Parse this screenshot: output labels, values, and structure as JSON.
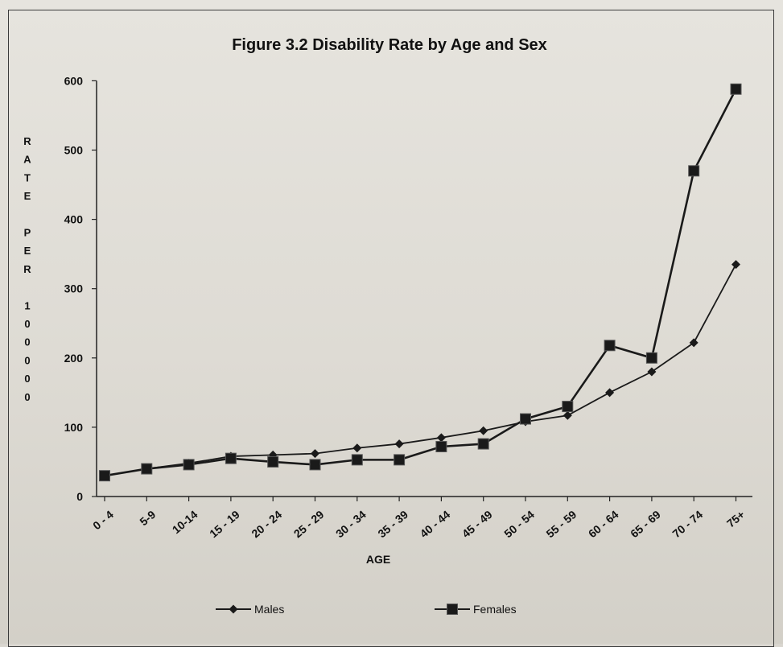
{
  "chart_data": {
    "type": "line",
    "title": "Figure 3.2 Disability Rate by Age and Sex",
    "xlabel": "AGE",
    "ylabel_chars": [
      "R",
      "A",
      "T",
      "E",
      "",
      "P",
      "E",
      "R",
      "",
      "1",
      "0",
      "0",
      "0",
      "0",
      "0"
    ],
    "ylim": [
      0,
      600
    ],
    "yticks": [
      0,
      100,
      200,
      300,
      400,
      500,
      600
    ],
    "grid": false,
    "legend_position": "bottom",
    "categories": [
      "0 - 4",
      "5-9",
      "10-14",
      "15 - 19",
      "20 - 24",
      "25 - 29",
      "30 - 34",
      "35 - 39",
      "40 - 44",
      "45 - 49",
      "50 - 54",
      "55 - 59",
      "60 - 64",
      "65 - 69",
      "70 - 74",
      "75+"
    ],
    "series": [
      {
        "name": "Males",
        "marker": "diamond",
        "color": "#1a1a1a",
        "values": [
          30,
          40,
          48,
          58,
          60,
          62,
          70,
          76,
          85,
          95,
          108,
          117,
          150,
          180,
          222,
          335
        ]
      },
      {
        "name": "Females",
        "marker": "square",
        "color": "#1a1a1a",
        "values": [
          30,
          40,
          46,
          55,
          50,
          46,
          53,
          53,
          72,
          76,
          112,
          130,
          218,
          200,
          470,
          588
        ]
      }
    ]
  }
}
